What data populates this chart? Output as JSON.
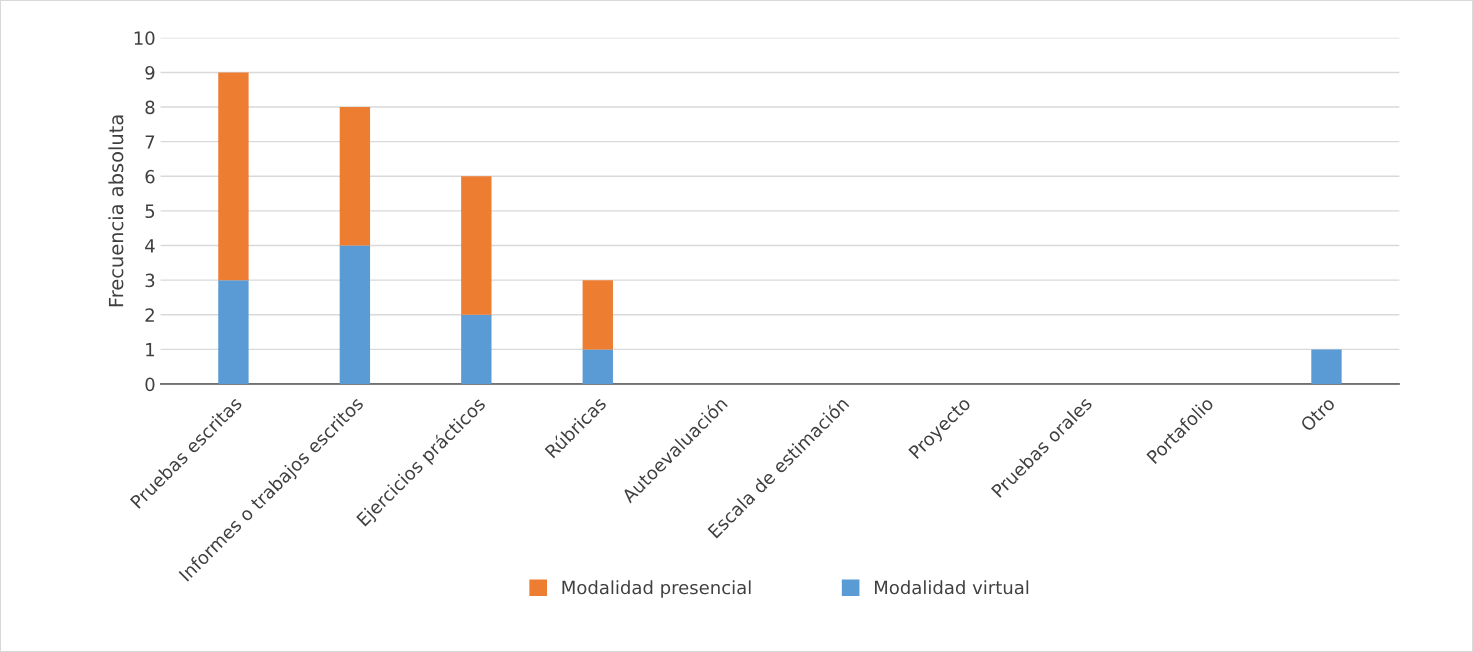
{
  "chart_data": {
    "type": "bar",
    "stacked": true,
    "ylabel": "Frecuencia absoluta",
    "categories": [
      "Pruebas escritas",
      "Informes o trabajos escritos",
      "Ejercicios prácticos",
      "Rúbricas",
      "Autoevaluación",
      "Escala de estimación",
      "Proyecto",
      "Pruebas orales",
      "Portafolio",
      "Otro"
    ],
    "series": [
      {
        "name": "Modalidad virtual",
        "color": "#5b9bd5",
        "values": [
          3,
          4,
          2,
          1,
          0,
          0,
          0,
          0,
          0,
          1
        ]
      },
      {
        "name": "Modalidad presencial",
        "color": "#ed7d31",
        "values": [
          6,
          4,
          4,
          2,
          0,
          0,
          0,
          0,
          0,
          0
        ]
      }
    ],
    "ylim": [
      0,
      10
    ],
    "yticks": [
      0,
      1,
      2,
      3,
      4,
      5,
      6,
      7,
      8,
      9,
      10
    ],
    "grid": "y",
    "legend": "bottom"
  }
}
